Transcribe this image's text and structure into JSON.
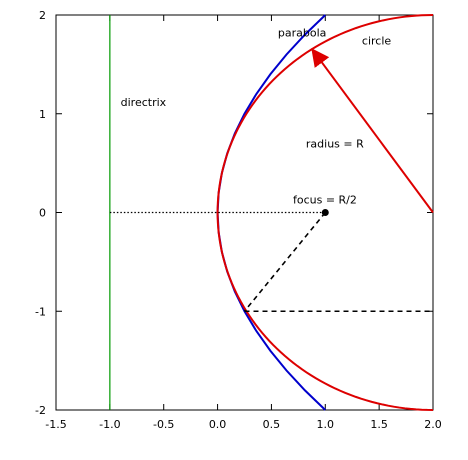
{
  "chart_data": {
    "type": "line",
    "title": "",
    "xlabel": "",
    "ylabel": "",
    "xlim": [
      -1.5,
      2.0
    ],
    "ylim": [
      -2,
      2
    ],
    "grid": false,
    "x_ticks": [
      -1.5,
      -1.0,
      -0.5,
      0.0,
      0.5,
      1.0,
      1.5,
      2.0
    ],
    "x_tick_labels": [
      "-1.5",
      "-1.0",
      "-0.5",
      "0.0",
      "0.5",
      "1.0",
      "1.5",
      "2.0"
    ],
    "y_ticks": [
      -2,
      -1,
      0,
      1,
      2
    ],
    "y_tick_labels": [
      "-2",
      "-1",
      "0",
      "1",
      "2"
    ],
    "series": [
      {
        "id": "parabola",
        "color": "#0000cc",
        "x": [
          1.0,
          0.81,
          0.64,
          0.49,
          0.36,
          0.25,
          0.16,
          0.09,
          0.04,
          0.01,
          0.0,
          0.01,
          0.04,
          0.09,
          0.16,
          0.25,
          0.36,
          0.49,
          0.64,
          0.81,
          1.0
        ],
        "y": [
          -2.0,
          -1.8,
          -1.6,
          -1.4,
          -1.2,
          -1.0,
          -0.8,
          -0.6,
          -0.4,
          -0.2,
          0.0,
          0.2,
          0.4,
          0.6,
          0.8,
          1.0,
          1.2,
          1.4,
          1.6,
          1.8,
          2.0
        ]
      },
      {
        "id": "circle",
        "color": "#dd0000",
        "center": [
          2.0,
          0.0
        ],
        "radius": 2.0,
        "angle_start_deg": 90,
        "angle_end_deg": 270
      },
      {
        "id": "directrix",
        "color": "#009900",
        "x": [
          -1.0,
          -1.0
        ],
        "y": [
          -2.0,
          2.0
        ]
      },
      {
        "id": "axis-line",
        "color": "#000000",
        "style": "dotted",
        "x": [
          -1.0,
          1.0
        ],
        "y": [
          0.0,
          0.0
        ]
      },
      {
        "id": "focus-to-point",
        "color": "#000000",
        "style": "dashed",
        "x": [
          1.0,
          0.25
        ],
        "y": [
          0.0,
          -1.0
        ]
      },
      {
        "id": "point-to-circle",
        "color": "#000000",
        "style": "dashed",
        "x": [
          0.25,
          2.0
        ],
        "y": [
          -1.0,
          -1.0
        ]
      }
    ],
    "points": [
      {
        "id": "focus",
        "x": 1.0,
        "y": 0.0,
        "color": "#000000"
      }
    ],
    "arrows": [
      {
        "id": "radius-arrow",
        "color": "#dd0000",
        "from": [
          2.0,
          0.0
        ],
        "to": [
          0.88,
          1.65
        ]
      }
    ],
    "annotations": [
      {
        "id": "parabola-label",
        "text": "parabola",
        "x": 0.56,
        "y": 1.78
      },
      {
        "id": "circle-label",
        "text": "circle",
        "x": 1.34,
        "y": 1.7
      },
      {
        "id": "directrix-label",
        "text": "directrix",
        "x": -0.9,
        "y": 1.08
      },
      {
        "id": "radius-label",
        "text": "radius = R",
        "x": 0.82,
        "y": 0.66
      },
      {
        "id": "focus-label",
        "text": "focus = R/2",
        "x": 0.7,
        "y": 0.09
      }
    ]
  }
}
